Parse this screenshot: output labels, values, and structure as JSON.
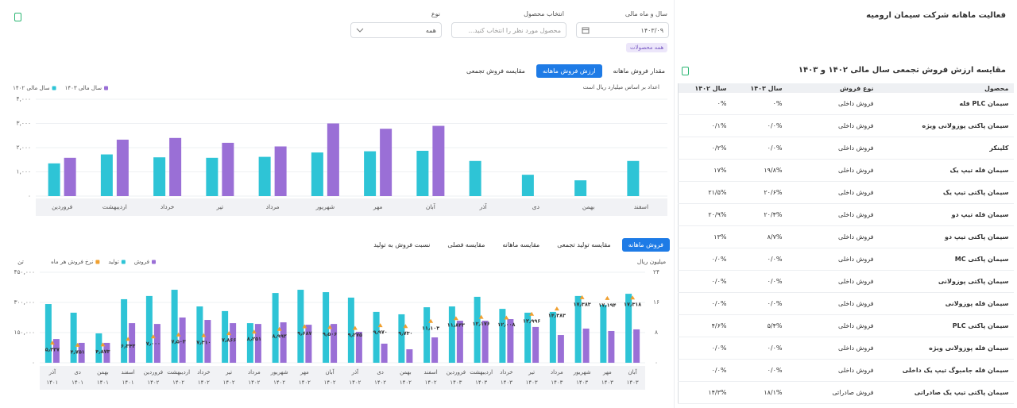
{
  "header": {
    "title": "فعالیت ماهانه شرکت سیمان ارومیه"
  },
  "filters": [
    {
      "label": "سال و ماه مالی",
      "value": "۱۴۰۳/۰۹"
    },
    {
      "label": "انتخاب محصول",
      "placeholder": "محصول مورد نظر را انتخاب کنید..."
    },
    {
      "label": "نوع",
      "value": "همه"
    }
  ],
  "tag": "همه محصولات",
  "table_card": {
    "title": "مقایسه ارزش فروش تجمعی سال مالی ۱۴۰۲ و ۱۴۰۳",
    "columns": [
      "محصول",
      "نوع فروش",
      "سال ۱۴۰۳",
      "سال ۱۴۰۲"
    ],
    "rows": [
      [
        "سیمان PLC فله",
        "فروش داخلی",
        "۰%",
        "۰%"
      ],
      [
        "سیمان پاکتی پوزولانی ویژه",
        "فروش داخلی",
        "۰/۰%",
        "۰/۱%"
      ],
      [
        "کلینکر",
        "فروش داخلی",
        "۰/۰%",
        "۰/۲%"
      ],
      [
        "سیمان فله تیپ یک",
        "فروش داخلی",
        "۱۹/۸%",
        "۱۷%"
      ],
      [
        "سیمان پاکتی تیپ یک",
        "فروش داخلی",
        "۲۰/۶%",
        "۲۱/۵%"
      ],
      [
        "سیمان فله تیپ دو",
        "فروش داخلی",
        "۲۰/۴%",
        "۲۰/۹%"
      ],
      [
        "سیمان پاکتی تیپ دو",
        "فروش داخلی",
        "۸/۷%",
        "۱۳%"
      ],
      [
        "سیمان پاکتی MC",
        "فروش داخلی",
        "۰/۰%",
        "۰/۰%"
      ],
      [
        "سیمان پاکتی پوزولانی",
        "فروش داخلی",
        "۰/۰%",
        "۰/۰%"
      ],
      [
        "سیمان فله پوزولانی",
        "فروش داخلی",
        "۰/۰%",
        "۰/۰%"
      ],
      [
        "سیمان پاکتی PLC",
        "فروش داخلی",
        "۵/۴%",
        "۴/۶%"
      ],
      [
        "سیمان فله پوزولانی ویژه",
        "فروش داخلی",
        "۰/۰%",
        "۰/۰%"
      ],
      [
        "سیمان فله جامبوگ تیپ یک داخلی",
        "فروش داخلی",
        "۰/۰%",
        "۰/۰%"
      ],
      [
        "سیمان پاکتی تیپ یک صادراتی",
        "فروش صادراتی",
        "۱۸/۱%",
        "۱۴/۳%"
      ]
    ]
  },
  "chart_data": [
    {
      "type": "bar",
      "tabs": [
        "مقدار فروش ماهانه",
        "ارزش فروش ماهانه",
        "مقایسه فروش تجمعی"
      ],
      "active_tab": 1,
      "note": "اعداد بر اساس میلیارد ریال است",
      "categories": [
        "فروردین",
        "اردیبهشت",
        "خرداد",
        "تیر",
        "مرداد",
        "شهریور",
        "مهر",
        "آبان",
        "آذر",
        "دی",
        "بهمن",
        "اسفند"
      ],
      "series": [
        {
          "name": "سال مالی ۱۴۰۳",
          "color": "#9a6fd6",
          "values": [
            1580,
            2330,
            2400,
            2200,
            2050,
            3000,
            2780,
            2900,
            null,
            null,
            null,
            null
          ]
        },
        {
          "name": "سال مالی ۱۴۰۲",
          "color": "#2ec4d6",
          "values": [
            1350,
            1720,
            1600,
            1580,
            1620,
            1800,
            1850,
            1870,
            1450,
            880,
            650,
            1450
          ]
        }
      ],
      "ylim": [
        0,
        4000
      ],
      "yticks": [
        {
          "value": 0,
          "label": "۰"
        },
        {
          "value": 1000,
          "label": "۱,۰۰۰"
        },
        {
          "value": 2000,
          "label": "۲,۰۰۰"
        },
        {
          "value": 3000,
          "label": "۳,۰۰۰"
        },
        {
          "value": 4000,
          "label": "۴,۰۰۰"
        }
      ],
      "grid": true
    },
    {
      "type": "bar",
      "tabs": [
        "فروش ماهانه",
        "مقایسه تولید تجمعی",
        "مقایسه ماهانه",
        "مقایسه فصلی",
        "نسبت فروش به تولید"
      ],
      "active_tab": 0,
      "y_label": "تن",
      "y2_label": "میلیون ریال",
      "categories": [
        "آذر",
        "دی",
        "بهمن",
        "اسفند",
        "فروردین",
        "اردیبهشت",
        "خرداد",
        "تیر",
        "مرداد",
        "شهریور",
        "مهر",
        "آبان",
        "آذر",
        "دی",
        "بهمن",
        "اسفند",
        "فروردین",
        "اردیبهشت",
        "خرداد",
        "تیر",
        "مرداد",
        "شهریور",
        "مهر",
        "آبان"
      ],
      "category_years": [
        "۱۴۰۱",
        "۱۴۰۱",
        "۱۴۰۱",
        "۱۴۰۱",
        "۱۴۰۲",
        "۱۴۰۲",
        "۱۴۰۲",
        "۱۴۰۲",
        "۱۴۰۲",
        "۱۴۰۲",
        "۱۴۰۲",
        "۱۴۰۲",
        "۱۴۰۲",
        "۱۴۰۲",
        "۱۴۰۲",
        "۱۴۰۲",
        "۱۴۰۳",
        "۱۴۰۳",
        "۱۴۰۳",
        "۱۴۰۳",
        "۱۴۰۳",
        "۱۴۰۳",
        "۱۴۰۳",
        "۱۴۰۳"
      ],
      "series": [
        {
          "name": "فروش",
          "color": "#9a6fd6",
          "values": [
            118000,
            99000,
            99000,
            197000,
            193000,
            225000,
            213000,
            197000,
            193000,
            201000,
            189000,
            193000,
            154000,
            95000,
            67000,
            126000,
            209000,
            209000,
            217000,
            178000,
            138000,
            170000,
            158000,
            166000
          ]
        },
        {
          "name": "تولید",
          "color": "#2ec4d6",
          "values": [
            292000,
            249000,
            146000,
            316000,
            332000,
            363000,
            280000,
            257000,
            197000,
            347000,
            363000,
            351000,
            324000,
            253000,
            241000,
            276000,
            280000,
            328000,
            268000,
            249000,
            253000,
            332000,
            288000,
            343000
          ]
        },
        {
          "name": "نرخ فروش هر ماه",
          "color": "#f0a030",
          "axis": "y2",
          "values": [
            5.337,
            4.751,
            4.873,
            6.343,
            7.0,
            7.503,
            7.31,
            7.866,
            8.251,
            8.992,
            9.687,
            9.506,
            9.275,
            9.97,
            9.73,
            11.103,
            11.843,
            12.176,
            12.008,
            12.996,
            14.383,
            17.383,
            17.194,
            17.318
          ],
          "value_labels": [
            "۵٫۳۳۷",
            "۴٫۷۵۱",
            "۴٫۸۷۳",
            "۶٫۳۴۳",
            "۷٫۰۰۰",
            "۷٫۵۰۳",
            "۷٫۳۱۰",
            "۷٫۸۶۶",
            "۸٫۲۵۱",
            "۸٫۹۹۲",
            "۹٫۶۸۷",
            "۹٫۵۰۶",
            "۹٫۲۷۵",
            "۹٫۹۷۰",
            "۹٫۷۳۰",
            "۱۱٫۱۰۳",
            "۱۱٫۸۴۳",
            "۱۲٫۱۷۶",
            "۱۲٫۰۰۸",
            "۱۲٫۹۹۶",
            "۱۴٫۳۸۳",
            "۱۷٫۳۸۳",
            "۱۷٫۱۹۴",
            "۱۷٫۳۱۸"
          ]
        }
      ],
      "ylim": [
        0,
        450000
      ],
      "yticks": [
        {
          "value": 0,
          "label": "۰"
        },
        {
          "value": 150000,
          "label": "۱۵۰,۰۰۰"
        },
        {
          "value": 300000,
          "label": "۳۰۰,۰۰۰"
        },
        {
          "value": 450000,
          "label": "۴۵۰,۰۰۰"
        }
      ],
      "y2lim": [
        0,
        24
      ],
      "y2ticks": [
        {
          "value": 0,
          "label": "۰"
        },
        {
          "value": 8,
          "label": "۸"
        },
        {
          "value": 16,
          "label": "۱۶"
        },
        {
          "value": 24,
          "label": "۲۴"
        }
      ],
      "grid": true
    }
  ]
}
